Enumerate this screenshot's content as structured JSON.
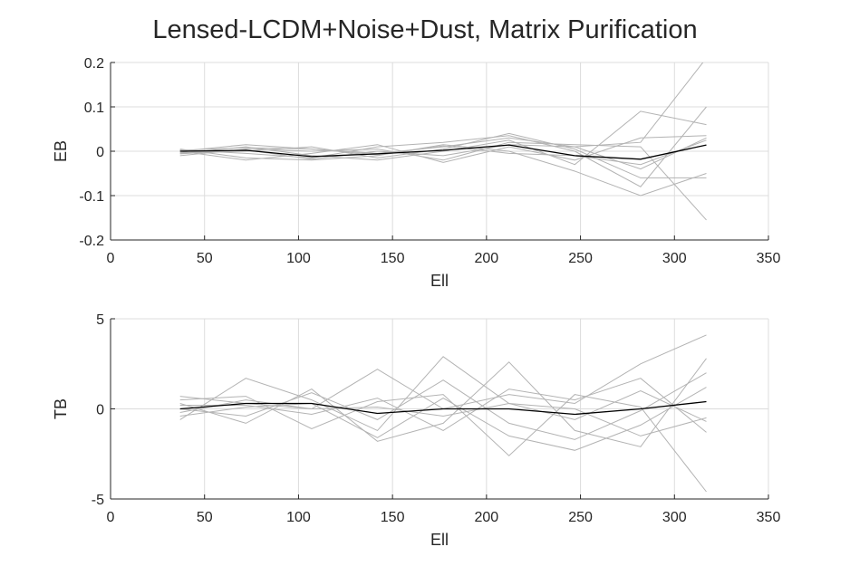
{
  "title": "Lensed-LCDM+Noise+Dust, Matrix Purification",
  "style": {
    "background": "#ffffff",
    "grid_color": "#dcdcdc",
    "axis_color": "#262626",
    "sim_color": "#b3b3b3",
    "mean_color": "#000000"
  },
  "chart_data": [
    {
      "type": "line",
      "title": "Lensed-LCDM+Noise+Dust, Matrix Purification",
      "xlabel": "Ell",
      "ylabel": "EB",
      "xlim": [
        0,
        350
      ],
      "ylim": [
        -0.2,
        0.2
      ],
      "xticks": [
        0,
        50,
        100,
        150,
        200,
        250,
        300,
        350
      ],
      "yticks": [
        -0.2,
        -0.1,
        0,
        0.1,
        0.2
      ],
      "ytick_labels": [
        "-0.2",
        "-0.1",
        "0",
        "0.1",
        "0.2"
      ],
      "grid": true,
      "x": [
        37,
        72,
        107,
        142,
        177,
        212,
        247,
        282,
        317
      ],
      "series": [
        {
          "role": "simulation",
          "values": [
            0.0,
            0.015,
            0.005,
            -0.005,
            0.01,
            0.03,
            0.01,
            0.02,
            0.21
          ]
        },
        {
          "role": "simulation",
          "values": [
            0.003,
            -0.005,
            -0.015,
            0.01,
            0.02,
            0.035,
            0.0,
            -0.08,
            0.1
          ]
        },
        {
          "role": "simulation",
          "values": [
            -0.005,
            0.01,
            -0.01,
            -0.02,
            0.0,
            0.025,
            -0.03,
            0.09,
            0.06
          ]
        },
        {
          "role": "simulation",
          "values": [
            -0.01,
            0.005,
            0.0,
            0.005,
            -0.02,
            0.02,
            0.015,
            0.01,
            -0.155
          ]
        },
        {
          "role": "simulation",
          "values": [
            0.005,
            -0.015,
            -0.02,
            -0.01,
            0.015,
            0.0,
            -0.045,
            -0.1,
            -0.05
          ]
        },
        {
          "role": "simulation",
          "values": [
            -0.003,
            0.0,
            0.01,
            -0.015,
            0.005,
            0.04,
            0.005,
            -0.06,
            -0.06
          ]
        },
        {
          "role": "simulation",
          "values": [
            0.0,
            -0.02,
            -0.005,
            0.015,
            -0.025,
            0.01,
            -0.02,
            0.03,
            0.035
          ]
        },
        {
          "role": "simulation",
          "values": [
            0.002,
            0.008,
            0.005,
            -0.008,
            0.012,
            -0.005,
            -0.01,
            -0.03,
            0.025
          ]
        },
        {
          "role": "simulation",
          "values": [
            -0.006,
            0.003,
            -0.018,
            0.0,
            -0.01,
            0.015,
            0.01,
            -0.04,
            0.03
          ]
        },
        {
          "role": "mean",
          "values": [
            0.0,
            0.002,
            -0.012,
            -0.006,
            0.002,
            0.014,
            -0.01,
            -0.018,
            0.014
          ]
        }
      ]
    },
    {
      "type": "line",
      "xlabel": "Ell",
      "ylabel": "TB",
      "xlim": [
        0,
        350
      ],
      "ylim": [
        -5,
        5
      ],
      "xticks": [
        0,
        50,
        100,
        150,
        200,
        250,
        300,
        350
      ],
      "yticks": [
        -5,
        0,
        5
      ],
      "ytick_labels": [
        "-5",
        "0",
        "5"
      ],
      "grid": true,
      "x": [
        37,
        72,
        107,
        142,
        177,
        212,
        247,
        282,
        317
      ],
      "series": [
        {
          "role": "simulation",
          "values": [
            0.7,
            0.3,
            0.0,
            2.2,
            0.0,
            0.8,
            0.3,
            2.5,
            4.1
          ]
        },
        {
          "role": "simulation",
          "values": [
            -0.6,
            1.7,
            0.5,
            -1.2,
            2.9,
            0.3,
            -0.6,
            1.0,
            -0.7
          ]
        },
        {
          "role": "simulation",
          "values": [
            0.3,
            -0.8,
            1.1,
            -1.8,
            -0.8,
            2.6,
            -1.2,
            -2.1,
            2.8
          ]
        },
        {
          "role": "simulation",
          "values": [
            0.5,
            0.7,
            -1.1,
            0.4,
            0.8,
            -2.6,
            0.8,
            0.1,
            -4.6
          ]
        },
        {
          "role": "simulation",
          "values": [
            -0.4,
            0.1,
            0.3,
            -1.6,
            0.6,
            -1.5,
            -2.3,
            -0.9,
            1.2
          ]
        },
        {
          "role": "simulation",
          "values": [
            0.2,
            0.2,
            -0.3,
            0.6,
            -1.2,
            1.1,
            0.5,
            1.7,
            -1.3
          ]
        },
        {
          "role": "simulation",
          "values": [
            0.0,
            -0.4,
            0.9,
            -0.6,
            1.6,
            -0.8,
            -1.7,
            -0.1,
            2.0
          ]
        },
        {
          "role": "simulation",
          "values": [
            -0.2,
            0.5,
            0.0,
            0.1,
            -0.4,
            0.3,
            0.0,
            -1.5,
            -0.5
          ]
        },
        {
          "role": "mean",
          "values": [
            0.0,
            0.3,
            0.3,
            -0.25,
            0.0,
            0.0,
            -0.3,
            0.0,
            0.4
          ]
        }
      ]
    }
  ]
}
